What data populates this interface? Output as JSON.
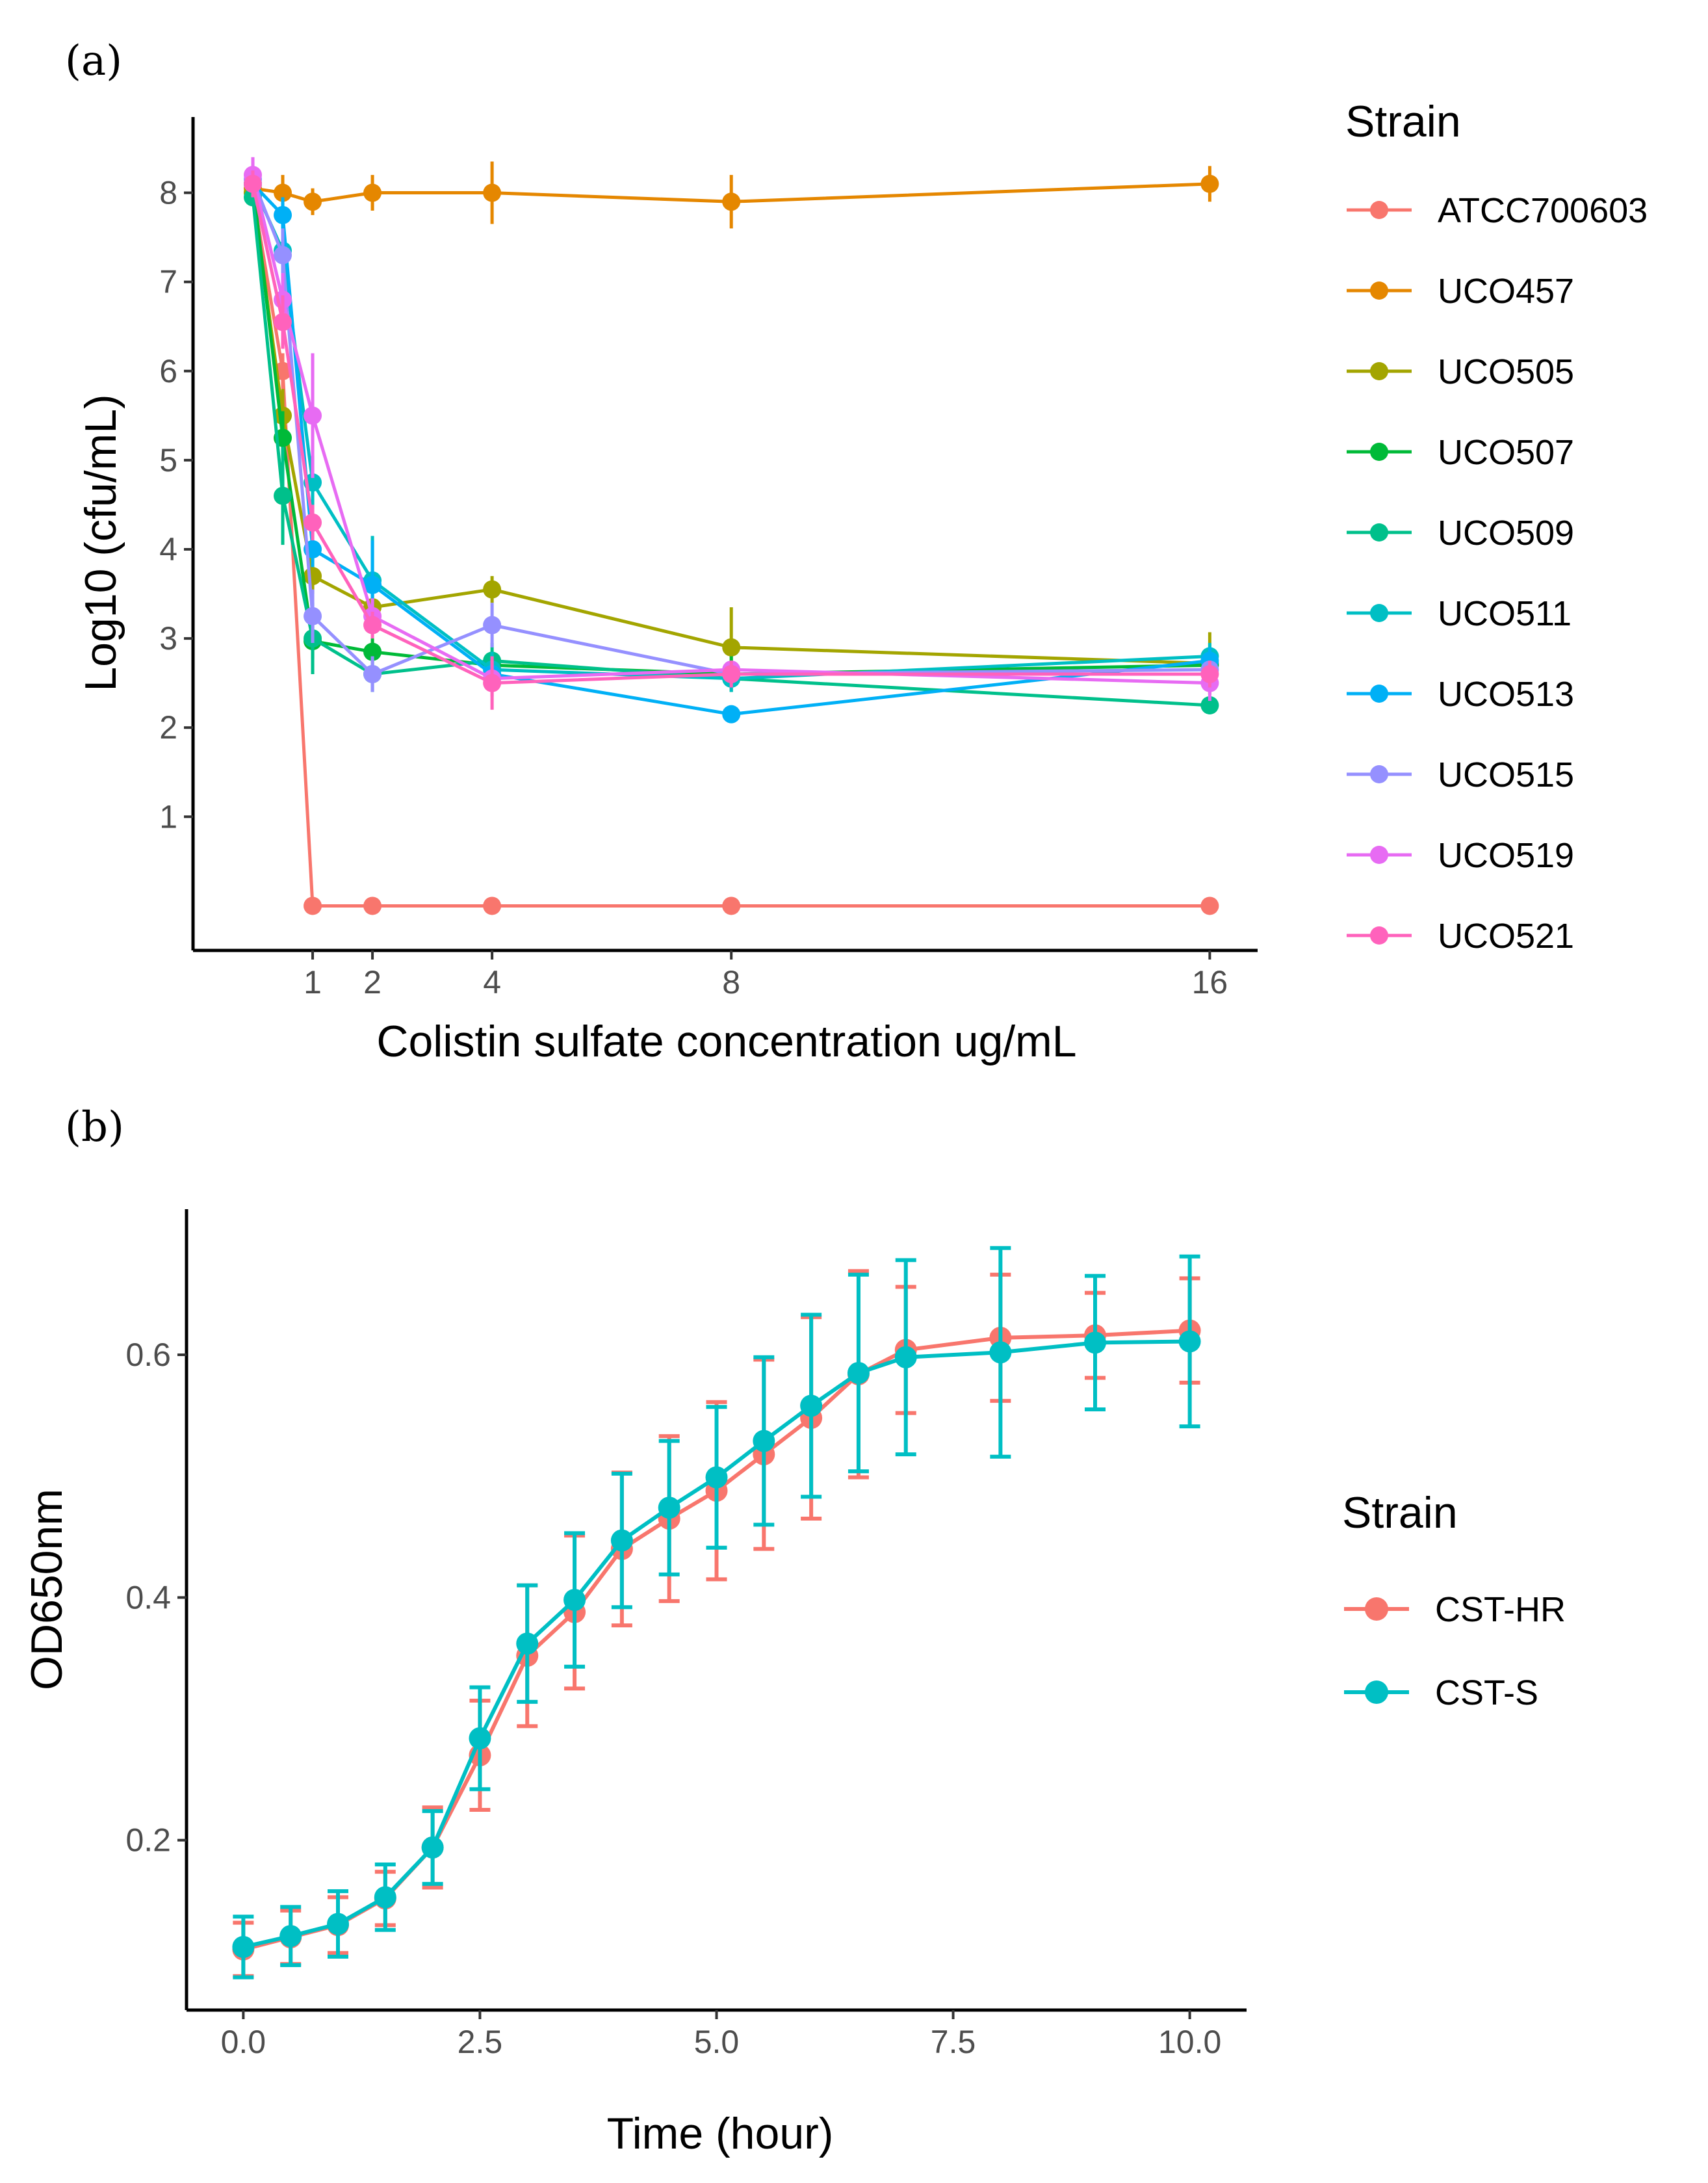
{
  "chart_data": [
    {
      "type": "line",
      "panel_label": "(a)",
      "xlabel": "Colistin sulfate concentration ug/mL",
      "ylabel": "Log10 (cfu/mL)",
      "xticks": [
        1,
        2,
        4,
        8,
        16
      ],
      "xtick_labels": [
        "1",
        "2",
        "4",
        "8",
        "16"
      ],
      "yticks": [
        1,
        2,
        3,
        4,
        5,
        6,
        7,
        8
      ],
      "ytick_labels": [
        "1",
        "2",
        "3",
        "4",
        "5",
        "6",
        "7",
        "8"
      ],
      "xlim": [
        -1,
        16.8
      ],
      "ylim": [
        -0.5,
        8.85
      ],
      "legend_title": "Strain",
      "legend_position": "right",
      "x": [
        0,
        0.5,
        1,
        2,
        4,
        8,
        16
      ],
      "series": [
        {
          "name": "ATCC700603",
          "color": "#F8766D",
          "values": [
            8.0,
            6.0,
            0.0,
            0.0,
            0.0,
            0.0,
            0.0
          ],
          "err": [
            0.1,
            0.2,
            0,
            0,
            0,
            0,
            0
          ]
        },
        {
          "name": "UCO457",
          "color": "#E58700",
          "values": [
            8.05,
            8.0,
            7.9,
            8.0,
            8.0,
            7.9,
            8.1
          ],
          "err": [
            0.2,
            0.2,
            0.15,
            0.2,
            0.35,
            0.3,
            0.2
          ]
        },
        {
          "name": "UCO505",
          "color": "#A3A500",
          "values": [
            8.0,
            5.5,
            3.7,
            3.35,
            3.55,
            2.9,
            2.72
          ],
          "err": [
            0.1,
            0.3,
            0.2,
            0.2,
            0.15,
            0.45,
            0.35
          ]
        },
        {
          "name": "UCO507",
          "color": "#00BA38",
          "values": [
            8.1,
            5.25,
            2.97,
            2.85,
            2.7,
            2.6,
            2.7
          ],
          "err": [
            0.15,
            0.3,
            0.2,
            0.15,
            0.15,
            0.2,
            0.2
          ]
        },
        {
          "name": "UCO509",
          "color": "#00C08B",
          "values": [
            7.95,
            4.6,
            3.0,
            2.6,
            2.75,
            2.55,
            2.25
          ],
          "err": [
            0.1,
            0.55,
            0.4,
            0.2,
            0.2,
            0.1,
            0.1
          ]
        },
        {
          "name": "UCO511",
          "color": "#00BFC4",
          "values": [
            8.1,
            7.35,
            4.75,
            3.65,
            2.65,
            2.55,
            2.8
          ],
          "err": [
            0.15,
            0.3,
            0.3,
            0.5,
            0.2,
            0.15,
            0.15
          ]
        },
        {
          "name": "UCO513",
          "color": "#00B0F6",
          "values": [
            8.1,
            7.75,
            4.0,
            3.6,
            2.6,
            2.15,
            2.75
          ],
          "err": [
            0.15,
            0.2,
            0.2,
            0.5,
            0.2,
            0.1,
            0.15
          ]
        },
        {
          "name": "UCO515",
          "color": "#9590FF",
          "values": [
            8.15,
            7.3,
            3.25,
            2.6,
            3.15,
            2.6,
            2.65
          ],
          "err": [
            0.2,
            0.3,
            0.3,
            0.2,
            0.25,
            0.1,
            0.1
          ]
        },
        {
          "name": "UCO519",
          "color": "#E76BF3",
          "values": [
            8.2,
            6.8,
            5.5,
            3.25,
            2.55,
            2.65,
            2.5
          ],
          "err": [
            0.2,
            0.3,
            0.7,
            0.2,
            0.2,
            0.1,
            0.2
          ]
        },
        {
          "name": "UCO521",
          "color": "#FF62BC",
          "values": [
            8.1,
            6.55,
            4.3,
            3.15,
            2.5,
            2.6,
            2.6
          ],
          "err": [
            0.15,
            0.3,
            0.2,
            0.15,
            0.3,
            0.15,
            0.15
          ]
        }
      ]
    },
    {
      "type": "line",
      "panel_label": "(b)",
      "xlabel": "Time (hour)",
      "ylabel": "OD650nm",
      "xticks": [
        0,
        2.5,
        5,
        7.5,
        10
      ],
      "xtick_labels": [
        "0.0",
        "2.5",
        "5.0",
        "7.5",
        "10.0"
      ],
      "yticks": [
        0.2,
        0.4,
        0.6
      ],
      "ytick_labels": [
        "0.2",
        "0.4",
        "0.6"
      ],
      "xlim": [
        -0.6,
        10.6
      ],
      "ylim": [
        0.06,
        0.72
      ],
      "legend_title": "Strain",
      "legend_position": "right",
      "x": [
        0,
        0.5,
        1,
        1.5,
        2,
        2.5,
        3,
        3.5,
        4,
        4.5,
        5,
        5.5,
        6,
        6.5,
        7,
        8,
        9,
        10
      ],
      "series": [
        {
          "name": "CST-HR",
          "color": "#F8766D",
          "values": [
            0.11,
            0.12,
            0.13,
            0.152,
            0.194,
            0.27,
            0.352,
            0.388,
            0.44,
            0.465,
            0.488,
            0.518,
            0.548,
            0.584,
            0.604,
            0.614,
            0.616,
            0.62
          ],
          "err": [
            0.022,
            0.022,
            0.023,
            0.022,
            0.033,
            0.045,
            0.058,
            0.063,
            0.063,
            0.068,
            0.073,
            0.078,
            0.083,
            0.085,
            0.052,
            0.052,
            0.035,
            0.043
          ]
        },
        {
          "name": "CST-S",
          "color": "#00BFC4",
          "values": [
            0.112,
            0.121,
            0.131,
            0.153,
            0.194,
            0.284,
            0.362,
            0.398,
            0.447,
            0.474,
            0.499,
            0.529,
            0.558,
            0.585,
            0.598,
            0.602,
            0.61,
            0.611
          ],
          "err": [
            0.025,
            0.024,
            0.027,
            0.027,
            0.03,
            0.042,
            0.048,
            0.055,
            0.055,
            0.055,
            0.058,
            0.069,
            0.075,
            0.081,
            0.08,
            0.086,
            0.055,
            0.07
          ]
        }
      ]
    }
  ]
}
